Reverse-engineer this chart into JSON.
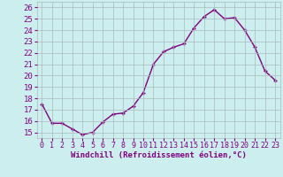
{
  "x": [
    0,
    1,
    2,
    3,
    4,
    5,
    6,
    7,
    8,
    9,
    10,
    11,
    12,
    13,
    14,
    15,
    16,
    17,
    18,
    19,
    20,
    21,
    22,
    23
  ],
  "y": [
    17.5,
    15.8,
    15.8,
    15.3,
    14.8,
    15.0,
    15.9,
    16.6,
    16.7,
    17.3,
    18.5,
    21.0,
    22.1,
    22.5,
    22.8,
    24.2,
    25.2,
    25.8,
    25.0,
    25.1,
    24.0,
    22.5,
    20.4,
    19.6
  ],
  "line_color": "#800080",
  "marker": "+",
  "bg_color": "#cceeee",
  "grid_color": "#aabbbb",
  "xlabel": "Windchill (Refroidissement éolien,°C)",
  "ylabel_ticks": [
    15,
    16,
    17,
    18,
    19,
    20,
    21,
    22,
    23,
    24,
    25,
    26
  ],
  "ylim": [
    14.5,
    26.5
  ],
  "xlim": [
    -0.5,
    23.5
  ],
  "tick_color": "#800080",
  "label_color": "#800080",
  "font_name": "monospace",
  "xlabel_fontsize": 6.5,
  "ylabel_fontsize": 6.5,
  "xlabel_tick_fontsize": 6.0,
  "marker_size": 3,
  "linewidth": 1.0
}
